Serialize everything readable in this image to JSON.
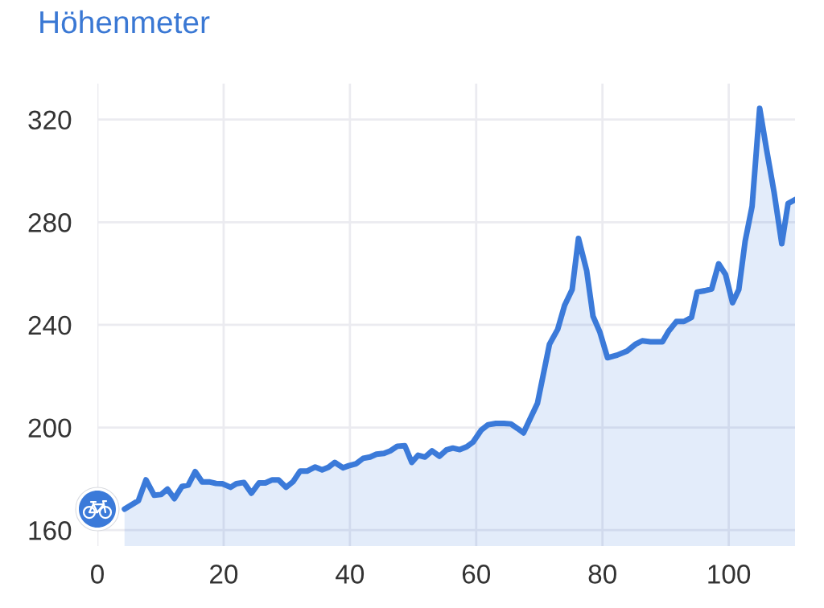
{
  "chart_data": {
    "type": "area",
    "title": "Höhenmeter",
    "x": [
      4.3,
      6.5,
      7.7,
      9.0,
      10.1,
      11.1,
      12.2,
      13.4,
      14.4,
      15.5,
      16.6,
      17.7,
      18.8,
      19.8,
      21.1,
      22.0,
      23.2,
      24.4,
      25.6,
      26.6,
      27.7,
      28.7,
      29.9,
      31.0,
      32.1,
      33.2,
      34.5,
      35.6,
      36.6,
      37.6,
      38.9,
      39.8,
      41.0,
      42.1,
      43.2,
      44.2,
      45.4,
      46.4,
      47.5,
      48.7,
      49.8,
      50.8,
      51.9,
      53.0,
      54.2,
      55.3,
      56.3,
      57.4,
      58.5,
      59.5,
      60.8,
      61.9,
      63.1,
      64.4,
      65.5,
      66.5,
      67.5,
      68.6,
      69.7,
      71.6,
      72.9,
      74.0,
      75.2,
      76.2,
      77.5,
      78.5,
      79.6,
      80.8,
      82.3,
      83.9,
      85.2,
      86.3,
      87.6,
      89.5,
      90.5,
      91.7,
      92.9,
      94.1,
      95.0,
      96.2,
      97.3,
      98.4,
      99.5,
      100.6,
      101.6,
      102.6,
      103.7,
      104.9,
      106.0,
      107.2,
      108.4,
      109.4,
      110.5
    ],
    "series": [
      {
        "color": "#3b7ad9",
        "values": [
          168.2,
          171.5,
          179.6,
          173.6,
          173.9,
          176.0,
          172.3,
          177.0,
          177.6,
          182.8,
          178.8,
          178.8,
          178.2,
          178.1,
          176.7,
          178.1,
          178.6,
          174.4,
          178.4,
          178.4,
          179.6,
          179.6,
          176.7,
          178.9,
          183.0,
          183.0,
          184.6,
          183.5,
          184.5,
          186.4,
          184.3,
          185.1,
          185.9,
          188.0,
          188.5,
          189.6,
          189.9,
          190.9,
          192.7,
          192.9,
          186.4,
          189.2,
          188.5,
          190.9,
          188.8,
          191.3,
          192.0,
          191.4,
          192.5,
          194.3,
          199.0,
          201.1,
          201.6,
          201.6,
          201.4,
          199.7,
          197.9,
          203.7,
          209.4,
          232.4,
          238.2,
          247.6,
          253.8,
          273.7,
          261.1,
          243.4,
          237.1,
          227.2,
          228.2,
          229.8,
          232.4,
          233.8,
          233.4,
          233.4,
          237.6,
          241.3,
          241.3,
          242.9,
          252.8,
          253.3,
          254.0,
          263.8,
          259.6,
          248.6,
          253.8,
          272.6,
          286.2,
          324.4,
          308.2,
          291.4,
          271.6,
          287.3,
          288.8
        ]
      }
    ],
    "xlim": [
      0,
      110.5
    ],
    "ylim": [
      153.8,
      334
    ],
    "xticks": [
      0,
      20,
      40,
      60,
      80,
      100
    ],
    "yticks": [
      160,
      200,
      240,
      280,
      320
    ],
    "grid": true
  }
}
